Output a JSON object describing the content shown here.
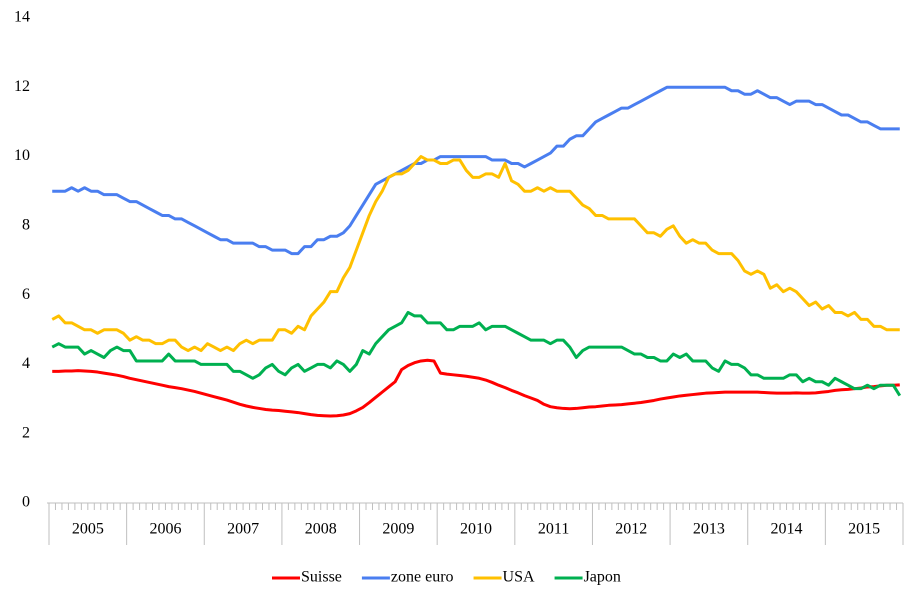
{
  "chart_data": {
    "type": "line",
    "categories": [
      null,
      null,
      null,
      null,
      null,
      null,
      "2005",
      null,
      null,
      null,
      null,
      null,
      null,
      null,
      null,
      null,
      null,
      null,
      "2006",
      null,
      null,
      null,
      null,
      null,
      null,
      null,
      null,
      null,
      null,
      null,
      "2007",
      null,
      null,
      null,
      null,
      null,
      null,
      null,
      null,
      null,
      null,
      null,
      "2008",
      null,
      null,
      null,
      null,
      null,
      null,
      null,
      null,
      null,
      null,
      null,
      "2009",
      null,
      null,
      null,
      null,
      null,
      null,
      null,
      null,
      null,
      null,
      null,
      "2010",
      null,
      null,
      null,
      null,
      null,
      null,
      null,
      null,
      null,
      null,
      null,
      "2011",
      null,
      null,
      null,
      null,
      null,
      null,
      null,
      null,
      null,
      null,
      null,
      "2012",
      null,
      null,
      null,
      null,
      null,
      null,
      null,
      null,
      null,
      null,
      null,
      "2013",
      null,
      null,
      null,
      null,
      null,
      null,
      null,
      null,
      null,
      null,
      null,
      "2014",
      null,
      null,
      null,
      null,
      null,
      null,
      null,
      null,
      null,
      null,
      null,
      "2015",
      null,
      null,
      null,
      null,
      null
    ],
    "series": [
      {
        "name": "Suisse",
        "color": "#ff0000",
        "values": [
          3.8,
          3.8,
          3.81,
          3.81,
          3.82,
          3.81,
          3.8,
          3.78,
          3.75,
          3.72,
          3.69,
          3.65,
          3.6,
          3.56,
          3.52,
          3.48,
          3.44,
          3.4,
          3.36,
          3.33,
          3.3,
          3.26,
          3.22,
          3.17,
          3.12,
          3.07,
          3.02,
          2.97,
          2.91,
          2.85,
          2.8,
          2.76,
          2.73,
          2.7,
          2.68,
          2.67,
          2.65,
          2.63,
          2.61,
          2.58,
          2.55,
          2.53,
          2.52,
          2.51,
          2.52,
          2.54,
          2.58,
          2.66,
          2.76,
          2.9,
          3.05,
          3.2,
          3.35,
          3.5,
          3.85,
          3.97,
          4.05,
          4.1,
          4.12,
          4.1,
          3.75,
          3.72,
          3.7,
          3.68,
          3.66,
          3.63,
          3.6,
          3.55,
          3.48,
          3.4,
          3.33,
          3.25,
          3.18,
          3.1,
          3.03,
          2.96,
          2.85,
          2.78,
          2.75,
          2.73,
          2.72,
          2.73,
          2.75,
          2.77,
          2.78,
          2.8,
          2.82,
          2.83,
          2.84,
          2.86,
          2.88,
          2.9,
          2.93,
          2.96,
          3.0,
          3.03,
          3.06,
          3.09,
          3.11,
          3.13,
          3.15,
          3.17,
          3.18,
          3.19,
          3.2,
          3.2,
          3.2,
          3.2,
          3.2,
          3.2,
          3.19,
          3.18,
          3.17,
          3.17,
          3.17,
          3.18,
          3.17,
          3.17,
          3.18,
          3.2,
          3.22,
          3.25,
          3.27,
          3.28,
          3.3,
          3.32,
          3.35,
          3.36,
          3.38,
          3.4,
          3.4,
          3.41
        ]
      },
      {
        "name": "zone euro",
        "color": "#4a7ef0",
        "values": [
          9.0,
          9.0,
          9.0,
          9.1,
          9.0,
          9.1,
          9.0,
          9.0,
          8.9,
          8.9,
          8.9,
          8.8,
          8.7,
          8.7,
          8.6,
          8.5,
          8.4,
          8.3,
          8.3,
          8.2,
          8.2,
          8.1,
          8.0,
          7.9,
          7.8,
          7.7,
          7.6,
          7.6,
          7.5,
          7.5,
          7.5,
          7.5,
          7.4,
          7.4,
          7.3,
          7.3,
          7.3,
          7.2,
          7.2,
          7.4,
          7.4,
          7.6,
          7.6,
          7.7,
          7.7,
          7.8,
          8.0,
          8.3,
          8.6,
          8.9,
          9.2,
          9.3,
          9.4,
          9.5,
          9.6,
          9.7,
          9.8,
          9.8,
          9.9,
          9.9,
          10.0,
          10.0,
          10.0,
          10.0,
          10.0,
          10.0,
          10.0,
          10.0,
          9.9,
          9.9,
          9.9,
          9.8,
          9.8,
          9.7,
          9.8,
          9.9,
          10.0,
          10.1,
          10.3,
          10.3,
          10.5,
          10.6,
          10.6,
          10.8,
          11.0,
          11.1,
          11.2,
          11.3,
          11.4,
          11.4,
          11.5,
          11.6,
          11.7,
          11.8,
          11.9,
          12.0,
          12.0,
          12.0,
          12.0,
          12.0,
          12.0,
          12.0,
          12.0,
          12.0,
          12.0,
          11.9,
          11.9,
          11.8,
          11.8,
          11.9,
          11.8,
          11.7,
          11.7,
          11.6,
          11.5,
          11.6,
          11.6,
          11.6,
          11.5,
          11.5,
          11.4,
          11.3,
          11.2,
          11.2,
          11.1,
          11.0,
          11.0,
          10.9,
          10.8,
          10.8,
          10.8,
          10.8
        ]
      },
      {
        "name": "USA",
        "color": "#ffc000",
        "values": [
          5.3,
          5.4,
          5.2,
          5.2,
          5.1,
          5.0,
          5.0,
          4.9,
          5.0,
          5.0,
          5.0,
          4.9,
          4.7,
          4.8,
          4.7,
          4.7,
          4.6,
          4.6,
          4.7,
          4.7,
          4.5,
          4.4,
          4.5,
          4.4,
          4.6,
          4.5,
          4.4,
          4.5,
          4.4,
          4.6,
          4.7,
          4.6,
          4.7,
          4.7,
          4.7,
          5.0,
          5.0,
          4.9,
          5.1,
          5.0,
          5.4,
          5.6,
          5.8,
          6.1,
          6.1,
          6.5,
          6.8,
          7.3,
          7.8,
          8.3,
          8.7,
          9.0,
          9.4,
          9.5,
          9.5,
          9.6,
          9.8,
          10.0,
          9.9,
          9.9,
          9.8,
          9.8,
          9.9,
          9.9,
          9.6,
          9.4,
          9.4,
          9.5,
          9.5,
          9.4,
          9.8,
          9.3,
          9.2,
          9.0,
          9.0,
          9.1,
          9.0,
          9.1,
          9.0,
          9.0,
          9.0,
          8.8,
          8.6,
          8.5,
          8.3,
          8.3,
          8.2,
          8.2,
          8.2,
          8.2,
          8.2,
          8.0,
          7.8,
          7.8,
          7.7,
          7.9,
          8.0,
          7.7,
          7.5,
          7.6,
          7.5,
          7.5,
          7.3,
          7.2,
          7.2,
          7.2,
          7.0,
          6.7,
          6.6,
          6.7,
          6.6,
          6.2,
          6.3,
          6.1,
          6.2,
          6.1,
          5.9,
          5.7,
          5.8,
          5.6,
          5.7,
          5.5,
          5.5,
          5.4,
          5.5,
          5.3,
          5.3,
          5.1,
          5.1,
          5.0,
          5.0,
          5.0
        ]
      },
      {
        "name": "Japon",
        "color": "#00b050",
        "values": [
          4.5,
          4.6,
          4.5,
          4.5,
          4.5,
          4.3,
          4.4,
          4.3,
          4.2,
          4.4,
          4.5,
          4.4,
          4.4,
          4.1,
          4.1,
          4.1,
          4.1,
          4.1,
          4.3,
          4.1,
          4.1,
          4.1,
          4.1,
          4.0,
          4.0,
          4.0,
          4.0,
          4.0,
          3.8,
          3.8,
          3.7,
          3.6,
          3.7,
          3.9,
          4.0,
          3.8,
          3.7,
          3.9,
          4.0,
          3.8,
          3.9,
          4.0,
          4.0,
          3.9,
          4.1,
          4.0,
          3.8,
          4.0,
          4.4,
          4.3,
          4.6,
          4.8,
          5.0,
          5.1,
          5.2,
          5.5,
          5.4,
          5.4,
          5.2,
          5.2,
          5.2,
          5.0,
          5.0,
          5.1,
          5.1,
          5.1,
          5.2,
          5.0,
          5.1,
          5.1,
          5.1,
          5.0,
          4.9,
          4.8,
          4.7,
          4.7,
          4.7,
          4.6,
          4.7,
          4.7,
          4.5,
          4.2,
          4.4,
          4.5,
          4.5,
          4.5,
          4.5,
          4.5,
          4.5,
          4.4,
          4.3,
          4.3,
          4.2,
          4.2,
          4.1,
          4.1,
          4.3,
          4.2,
          4.3,
          4.1,
          4.1,
          4.1,
          3.9,
          3.8,
          4.1,
          4.0,
          4.0,
          3.9,
          3.7,
          3.7,
          3.6,
          3.6,
          3.6,
          3.6,
          3.7,
          3.7,
          3.5,
          3.6,
          3.5,
          3.5,
          3.4,
          3.6,
          3.5,
          3.4,
          3.3,
          3.3,
          3.4,
          3.3,
          3.4,
          3.4,
          3.4,
          3.1
        ]
      }
    ],
    "ylim": [
      0,
      14
    ],
    "yticks": [
      0,
      2,
      4,
      6,
      8,
      10,
      12,
      14
    ],
    "grid": false,
    "legend": "bottom"
  }
}
